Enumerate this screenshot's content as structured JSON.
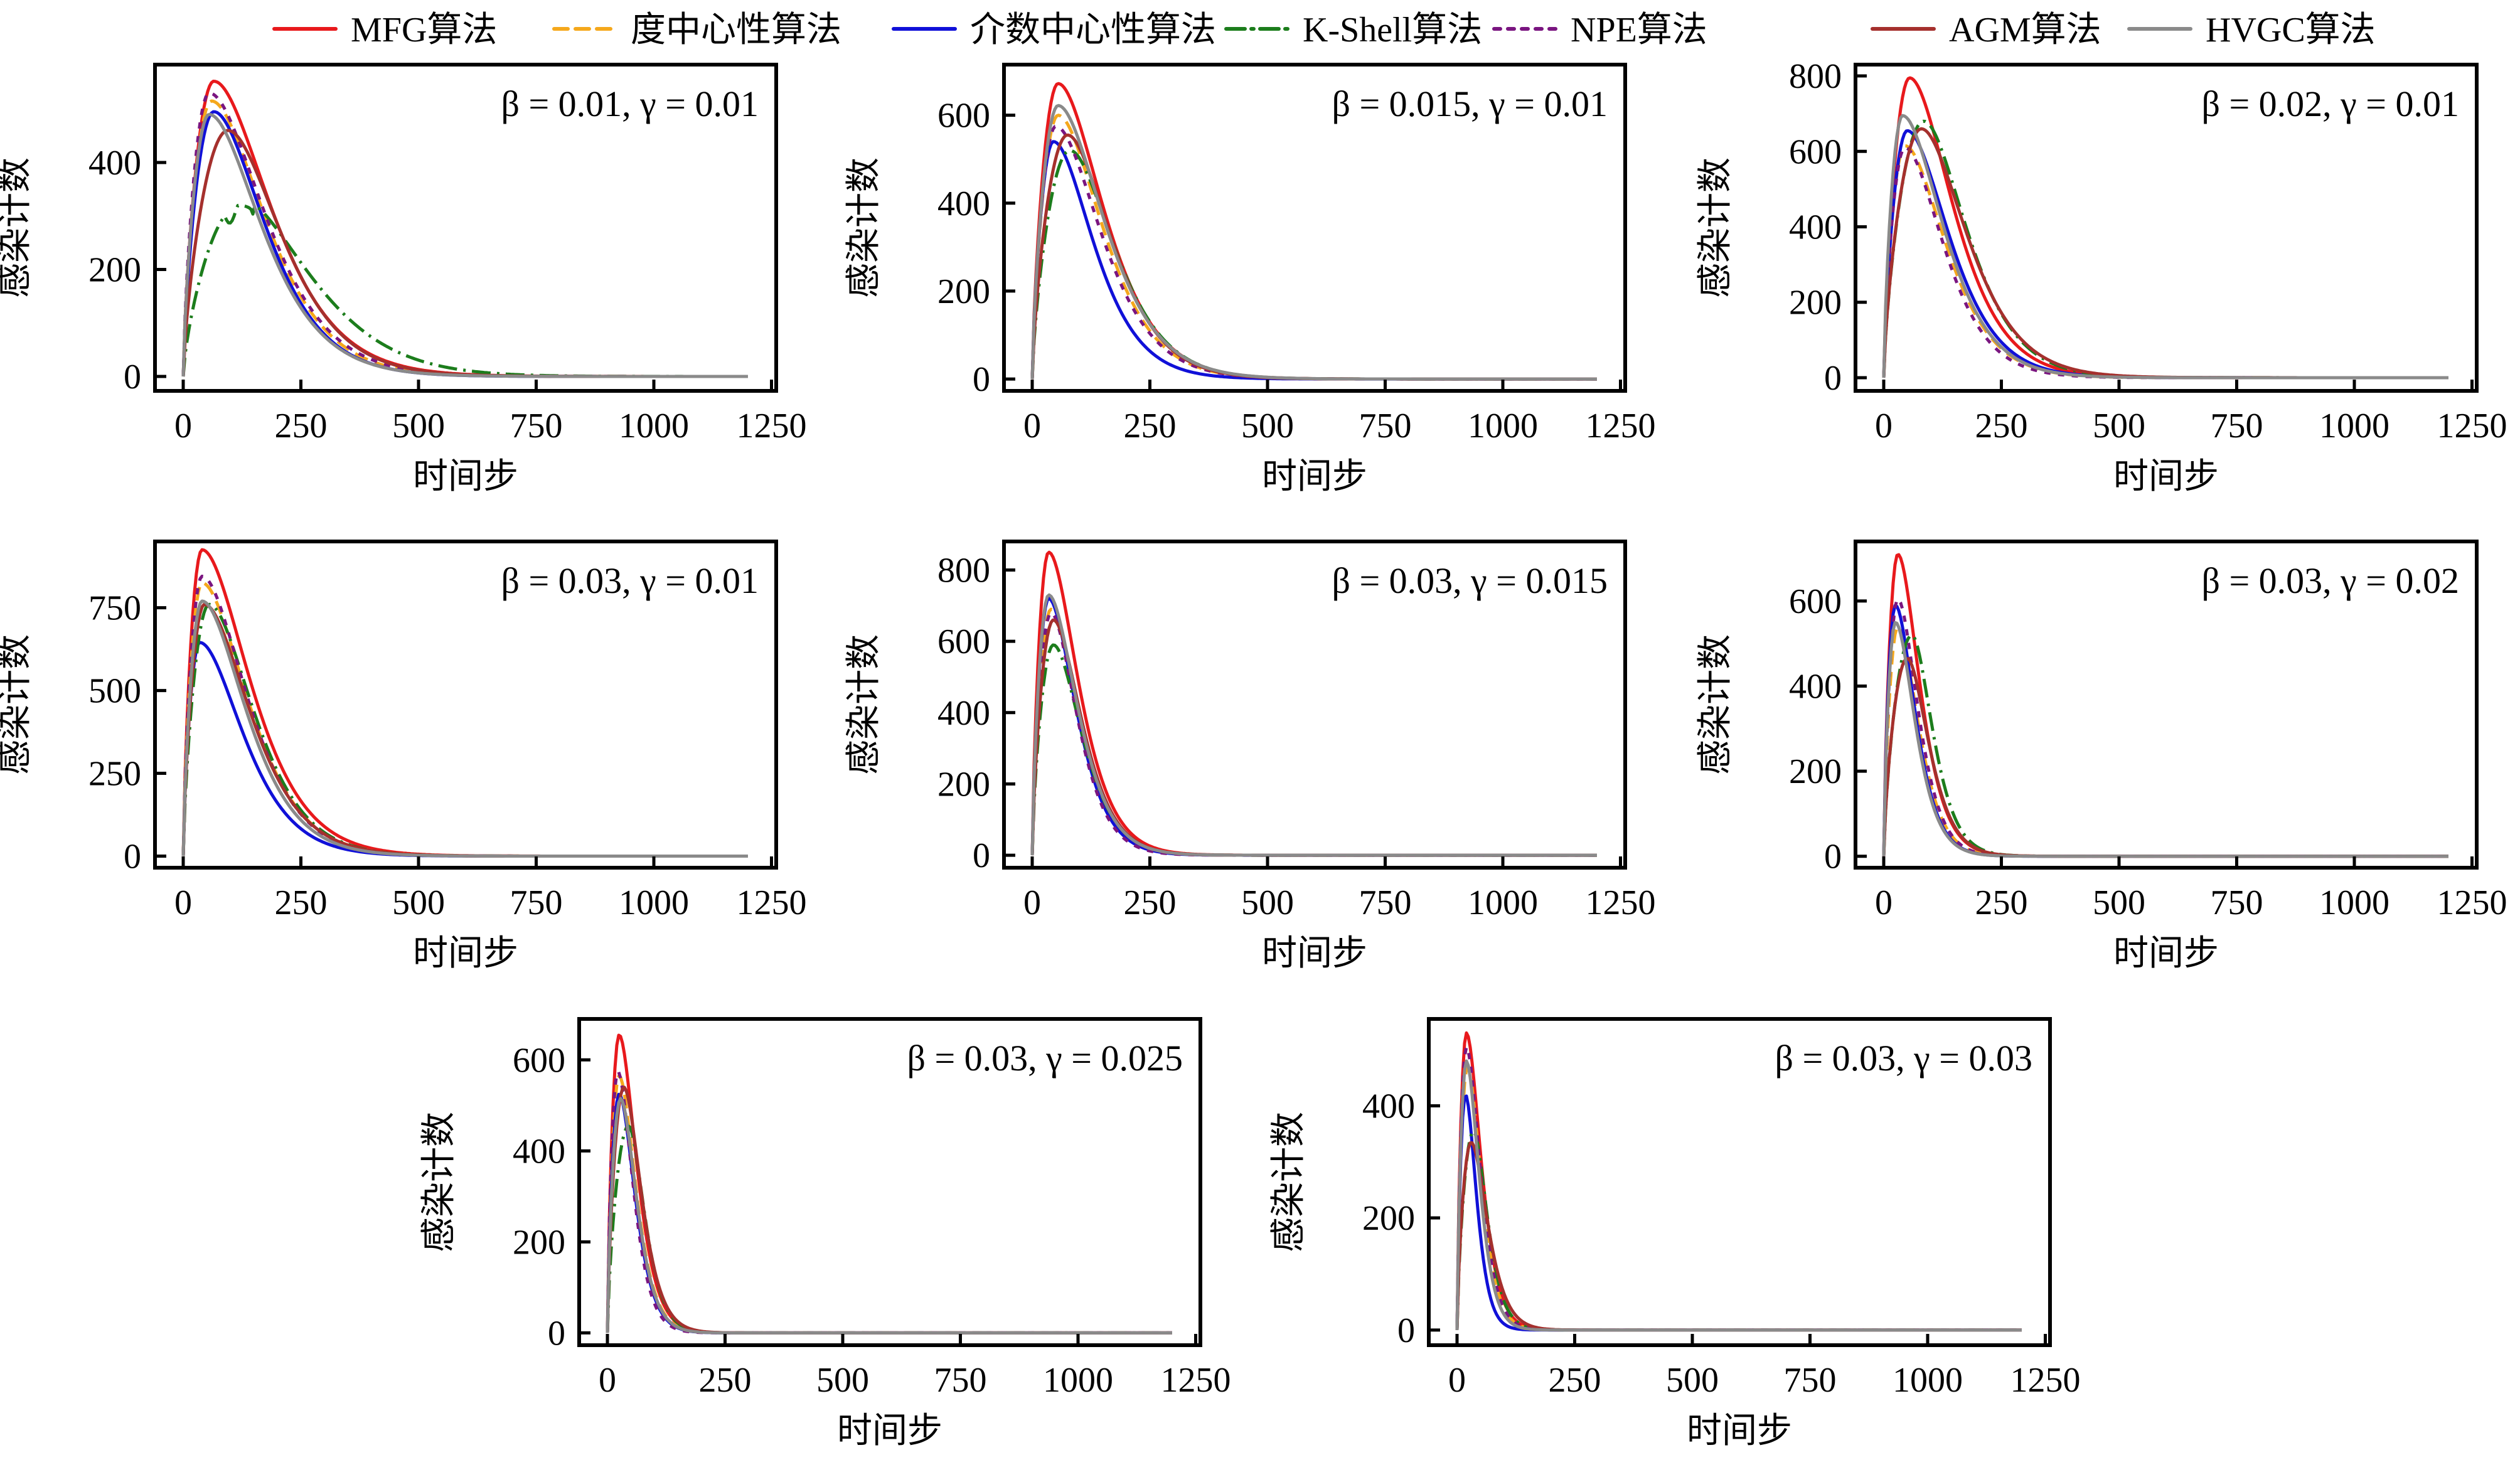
{
  "chart_data": {
    "type": "line",
    "title": "",
    "legend": {
      "placement": "top-center",
      "entries": [
        {
          "name": "MFG算法",
          "color": "#e8191c",
          "dash": "solid"
        },
        {
          "name": "度中心性算法",
          "color": "#f5a81c",
          "dash": "dashed"
        },
        {
          "name": "介数中心性算法",
          "color": "#1010d8",
          "dash": "solid"
        },
        {
          "name": "K-Shell算法",
          "color": "#1c7d1c",
          "dash": "dashdot"
        },
        {
          "name": "NPE算法",
          "color": "#7a1580",
          "dash": "dotted"
        },
        {
          "name": "AGM算法",
          "color": "#a5302d",
          "dash": "solid"
        },
        {
          "name": "HVGC算法",
          "color": "#8a8a8a",
          "dash": "solid"
        }
      ]
    },
    "x_sample_points": [
      0,
      25,
      50,
      75,
      100,
      150,
      200,
      250,
      300,
      400,
      500,
      750,
      1000,
      1200
    ],
    "subplots": [
      {
        "annotation": "β = 0.01, γ = 0.01",
        "xlabel": "时间步",
        "ylabel": "感染计数",
        "xlim": [
          -60,
          1260
        ],
        "ylim": [
          -27,
          583
        ],
        "xticks": [
          0,
          250,
          500,
          750,
          1000,
          1250
        ],
        "yticks": [
          0,
          200,
          400
        ],
        "grid": false,
        "series": [
          {
            "name": "MFG算法",
            "peak": 552,
            "peak_t": 65,
            "decay": 125
          },
          {
            "name": "度中心性算法",
            "peak": 515,
            "peak_t": 60,
            "decay": 118
          },
          {
            "name": "介数中心性算法",
            "peak": 495,
            "peak_t": 65,
            "decay": 112
          },
          {
            "name": "K-Shell算法",
            "peak": 320,
            "peak_t": 120,
            "decay": 150,
            "plateau": true
          },
          {
            "name": "NPE算法",
            "peak": 530,
            "peak_t": 55,
            "decay": 122
          },
          {
            "name": "AGM算法",
            "peak": 460,
            "peak_t": 95,
            "decay": 118
          },
          {
            "name": "HVGC算法",
            "peak": 490,
            "peak_t": 55,
            "decay": 115
          }
        ]
      },
      {
        "annotation": "β = 0.015, γ = 0.01",
        "xlabel": "时间步",
        "ylabel": "感染计数",
        "xlim": [
          -60,
          1260
        ],
        "ylim": [
          -27,
          715
        ],
        "xticks": [
          0,
          250,
          500,
          750,
          1000,
          1250
        ],
        "yticks": [
          0,
          200,
          400,
          600
        ],
        "grid": false,
        "series": [
          {
            "name": "MFG算法",
            "peak": 672,
            "peak_t": 55,
            "decay": 100
          },
          {
            "name": "度中心性算法",
            "peak": 600,
            "peak_t": 55,
            "decay": 98
          },
          {
            "name": "介数中心性算法",
            "peak": 540,
            "peak_t": 45,
            "decay": 88
          },
          {
            "name": "K-Shell算法",
            "peak": 520,
            "peak_t": 80,
            "decay": 98
          },
          {
            "name": "NPE算法",
            "peak": 575,
            "peak_t": 50,
            "decay": 100
          },
          {
            "name": "AGM算法",
            "peak": 555,
            "peak_t": 75,
            "decay": 96
          },
          {
            "name": "HVGC算法",
            "peak": 622,
            "peak_t": 55,
            "decay": 102
          }
        ]
      },
      {
        "annotation": "β = 0.02, γ = 0.01",
        "xlabel": "时间步",
        "ylabel": "感染计数",
        "xlim": [
          -60,
          1260
        ],
        "ylim": [
          -35,
          830
        ],
        "xticks": [
          0,
          250,
          500,
          750,
          1000,
          1250
        ],
        "yticks": [
          0,
          200,
          400,
          600,
          800
        ],
        "grid": false,
        "series": [
          {
            "name": "MFG算法",
            "peak": 795,
            "peak_t": 55,
            "decay": 95
          },
          {
            "name": "度中心性算法",
            "peak": 615,
            "peak_t": 45,
            "decay": 90
          },
          {
            "name": "介数中心性算法",
            "peak": 655,
            "peak_t": 50,
            "decay": 92
          },
          {
            "name": "K-Shell算法",
            "peak": 680,
            "peak_t": 85,
            "decay": 95
          },
          {
            "name": "NPE算法",
            "peak": 610,
            "peak_t": 45,
            "decay": 85
          },
          {
            "name": "AGM算法",
            "peak": 660,
            "peak_t": 80,
            "decay": 100
          },
          {
            "name": "HVGC算法",
            "peak": 695,
            "peak_t": 40,
            "decay": 90
          }
        ]
      },
      {
        "annotation": "β = 0.03, γ = 0.01",
        "xlabel": "时间步",
        "ylabel": "感染计数",
        "xlim": [
          -60,
          1260
        ],
        "ylim": [
          -35,
          950
        ],
        "xticks": [
          0,
          250,
          500,
          750,
          1000,
          1250
        ],
        "yticks": [
          0,
          250,
          500,
          750
        ],
        "grid": false,
        "series": [
          {
            "name": "MFG算法",
            "peak": 925,
            "peak_t": 40,
            "decay": 105
          },
          {
            "name": "度中心性算法",
            "peak": 825,
            "peak_t": 40,
            "decay": 100
          },
          {
            "name": "介数中心性算法",
            "peak": 645,
            "peak_t": 35,
            "decay": 95
          },
          {
            "name": "K-Shell算法",
            "peak": 760,
            "peak_t": 55,
            "decay": 98
          },
          {
            "name": "NPE算法",
            "peak": 845,
            "peak_t": 40,
            "decay": 98
          },
          {
            "name": "AGM算法",
            "peak": 760,
            "peak_t": 45,
            "decay": 100
          },
          {
            "name": "HVGC算法",
            "peak": 770,
            "peak_t": 40,
            "decay": 96
          }
        ]
      },
      {
        "annotation": "β = 0.03, γ = 0.015",
        "xlabel": "时间步",
        "ylabel": "感染计数",
        "xlim": [
          -60,
          1260
        ],
        "ylim": [
          -35,
          880
        ],
        "xticks": [
          0,
          250,
          500,
          750,
          1000,
          1250
        ],
        "yticks": [
          0,
          200,
          400,
          600,
          800
        ],
        "grid": false,
        "series": [
          {
            "name": "MFG算法",
            "peak": 850,
            "peak_t": 35,
            "decay": 65
          },
          {
            "name": "度中心性算法",
            "peak": 690,
            "peak_t": 40,
            "decay": 60
          },
          {
            "name": "介数中心性算法",
            "peak": 720,
            "peak_t": 35,
            "decay": 60
          },
          {
            "name": "K-Shell算法",
            "peak": 590,
            "peak_t": 45,
            "decay": 63
          },
          {
            "name": "NPE算法",
            "peak": 680,
            "peak_t": 40,
            "decay": 57
          },
          {
            "name": "AGM算法",
            "peak": 660,
            "peak_t": 45,
            "decay": 62
          },
          {
            "name": "HVGC算法",
            "peak": 730,
            "peak_t": 35,
            "decay": 63
          }
        ]
      },
      {
        "annotation": "β = 0.03, γ = 0.02",
        "xlabel": "时间步",
        "ylabel": "感染计数",
        "xlim": [
          -60,
          1260
        ],
        "ylim": [
          -27,
          740
        ],
        "xticks": [
          0,
          250,
          500,
          750,
          1000,
          1250
        ],
        "yticks": [
          0,
          200,
          400,
          600
        ],
        "grid": false,
        "series": [
          {
            "name": "MFG算法",
            "peak": 710,
            "peak_t": 30,
            "decay": 48
          },
          {
            "name": "度中心性算法",
            "peak": 540,
            "peak_t": 30,
            "decay": 45
          },
          {
            "name": "介数中心性算法",
            "peak": 590,
            "peak_t": 25,
            "decay": 43
          },
          {
            "name": "K-Shell算法",
            "peak": 520,
            "peak_t": 60,
            "decay": 45
          },
          {
            "name": "NPE算法",
            "peak": 605,
            "peak_t": 30,
            "decay": 44
          },
          {
            "name": "AGM算法",
            "peak": 465,
            "peak_t": 50,
            "decay": 47
          },
          {
            "name": "HVGC算法",
            "peak": 550,
            "peak_t": 25,
            "decay": 43
          }
        ]
      },
      {
        "annotation": "β = 0.03, γ = 0.025",
        "xlabel": "时间步",
        "ylabel": "感染计数",
        "xlim": [
          -60,
          1260
        ],
        "ylim": [
          -27,
          690
        ],
        "xticks": [
          0,
          250,
          500,
          750,
          1000,
          1250
        ],
        "yticks": [
          0,
          200,
          400,
          600
        ],
        "grid": false,
        "series": [
          {
            "name": "MFG算法",
            "peak": 655,
            "peak_t": 25,
            "decay": 38
          },
          {
            "name": "度中心性算法",
            "peak": 565,
            "peak_t": 25,
            "decay": 36
          },
          {
            "name": "介数中心性算法",
            "peak": 525,
            "peak_t": 25,
            "decay": 35
          },
          {
            "name": "K-Shell算法",
            "peak": 455,
            "peak_t": 45,
            "decay": 35
          },
          {
            "name": "NPE算法",
            "peak": 575,
            "peak_t": 22,
            "decay": 33
          },
          {
            "name": "AGM算法",
            "peak": 540,
            "peak_t": 35,
            "decay": 38
          },
          {
            "name": "HVGC算法",
            "peak": 515,
            "peak_t": 28,
            "decay": 35
          }
        ]
      },
      {
        "annotation": "β = 0.03, γ = 0.03",
        "xlabel": "时间步",
        "ylabel": "感染计数",
        "xlim": [
          -60,
          1260
        ],
        "ylim": [
          -27,
          555
        ],
        "xticks": [
          0,
          250,
          500,
          750,
          1000,
          1250
        ],
        "yticks": [
          0,
          200,
          400
        ],
        "grid": false,
        "series": [
          {
            "name": "MFG算法",
            "peak": 530,
            "peak_t": 20,
            "decay": 32
          },
          {
            "name": "度中心性算法",
            "peak": 470,
            "peak_t": 22,
            "decay": 30
          },
          {
            "name": "介数中心性算法",
            "peak": 420,
            "peak_t": 18,
            "decay": 24
          },
          {
            "name": "K-Shell算法",
            "peak": 355,
            "peak_t": 35,
            "decay": 30
          },
          {
            "name": "NPE算法",
            "peak": 505,
            "peak_t": 20,
            "decay": 30
          },
          {
            "name": "AGM算法",
            "peak": 335,
            "peak_t": 30,
            "decay": 36
          },
          {
            "name": "HVGC算法",
            "peak": 480,
            "peak_t": 20,
            "decay": 28
          }
        ]
      }
    ]
  }
}
